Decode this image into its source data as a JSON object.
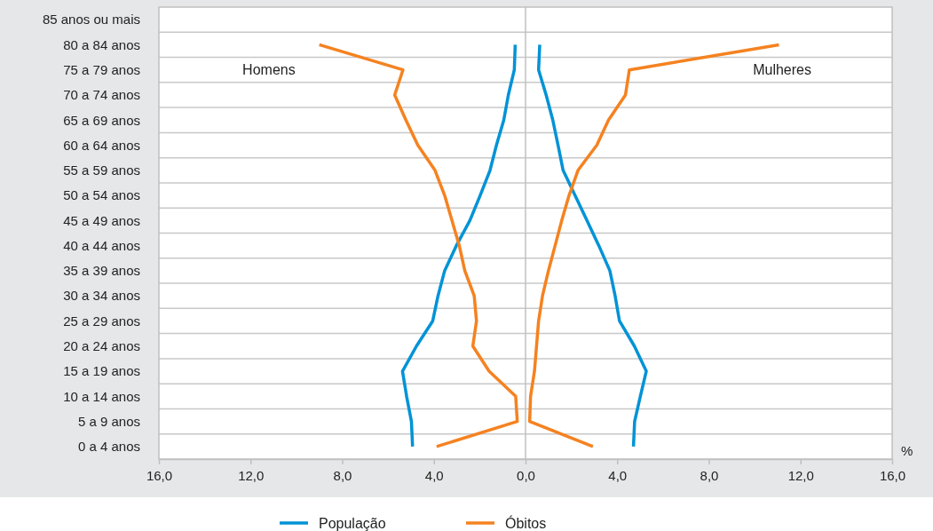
{
  "chart_data": {
    "type": "line",
    "orientation": "horizontal",
    "categories": [
      "85 anos ou mais",
      "80 a 84 anos",
      "75 a 79 anos",
      "70 a 74 anos",
      "65 a 69 anos",
      "60 a 64 anos",
      "55 a 59 anos",
      "50 a 54 anos",
      "45 a 49 anos",
      "40 a 44 anos",
      "35 a 39 anos",
      "30 a 34 anos",
      "25 a 29 anos",
      "20 a 24 anos",
      "15 a 19 anos",
      "10 a 14 anos",
      "5 a 9 anos",
      "0 a 4 anos"
    ],
    "series": [
      {
        "name": "População",
        "color": "#0093d6",
        "values": [
          null,
          -0.45,
          -0.49,
          -0.75,
          -0.95,
          -1.27,
          -1.55,
          -1.98,
          -2.43,
          -3.02,
          -3.53,
          -3.82,
          -4.05,
          -4.76,
          -5.37,
          -5.19,
          -4.98,
          -4.93
        ]
      },
      {
        "name": "Óbitos",
        "color": "#f58220",
        "values": [
          null,
          -9.0,
          -5.35,
          -5.71,
          -5.22,
          -4.7,
          -3.95,
          -3.53,
          -3.21,
          -2.89,
          -2.65,
          -2.24,
          -2.14,
          -2.3,
          -1.59,
          -0.43,
          -0.36,
          -3.88
        ]
      },
      {
        "color": "#0093d6",
        "values": [
          null,
          0.62,
          0.57,
          0.9,
          1.19,
          1.42,
          1.64,
          2.16,
          2.68,
          3.2,
          3.68,
          3.91,
          4.1,
          4.75,
          5.27,
          5.01,
          4.76,
          4.71
        ]
      },
      {
        "color": "#f58220",
        "values": [
          null,
          11.06,
          4.53,
          4.36,
          3.62,
          3.11,
          2.29,
          1.9,
          1.58,
          1.29,
          1.0,
          0.74,
          0.57,
          0.48,
          0.39,
          0.22,
          0.18,
          2.94
        ]
      }
    ],
    "xlim": [
      -16,
      16
    ],
    "xticks": [
      {
        "value": -16,
        "label": "16,0"
      },
      {
        "value": -12,
        "label": "12,0"
      },
      {
        "value": -8,
        "label": "8,0"
      },
      {
        "value": -4,
        "label": "4,0"
      },
      {
        "value": 0,
        "label": "0,0"
      },
      {
        "value": 4,
        "label": "4,0"
      },
      {
        "value": 8,
        "label": "8,0"
      },
      {
        "value": 12,
        "label": "12,0"
      },
      {
        "value": 16,
        "label": "16,0"
      }
    ],
    "xlabel": "%",
    "annotations": [
      "Homens",
      "Mulheres"
    ],
    "grid": "y",
    "legend": "bottom",
    "line_style": "solid",
    "marker": "none"
  }
}
